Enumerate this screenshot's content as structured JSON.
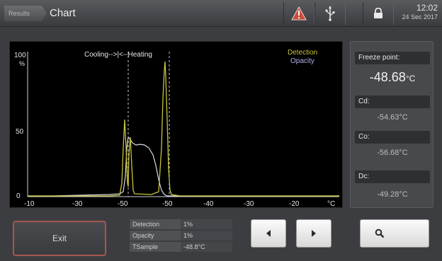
{
  "header": {
    "crumb": "Results",
    "title": "Chart",
    "time": "12:02",
    "date": "24 Sec 2017"
  },
  "chart": {
    "y_top": "100",
    "y_unit": "%",
    "y_mid": "50",
    "y_bot": "0",
    "x_ticks": [
      "-10",
      "-30",
      "-50",
      "-50",
      "-40",
      "-30",
      "-20",
      "°C"
    ],
    "annotation": "Cooling-->|<--Heating",
    "legend": [
      "Detection",
      "Opacity"
    ],
    "colors": {
      "detection": "#c7c43a",
      "opacity": "#d8d8e4"
    }
  },
  "info": {
    "freeze_label": "Freeze point:",
    "freeze_value": "-48.68",
    "freeze_unit": "°C",
    "cd_label": "Cd:",
    "cd_value": "-54.63°C",
    "co_label": "Co:",
    "co_value": "-56.68°C",
    "dc_label": "Dc:",
    "dc_value": "-49.28°C"
  },
  "footer": {
    "exit_label": "Exit",
    "params": [
      {
        "k": "Detection",
        "v": "1%"
      },
      {
        "k": "Opacity",
        "v": "1%"
      },
      {
        "k": "TSample",
        "v": "-48.8°C"
      }
    ],
    "icons": {
      "prev": "chevron-left-icon",
      "next": "chevron-right-icon",
      "search": "search-icon"
    }
  }
}
